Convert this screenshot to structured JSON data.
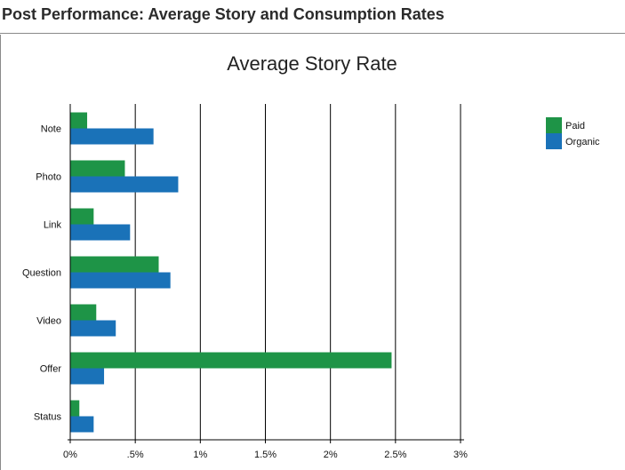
{
  "page": {
    "title": "Post Performance: Average Story and Consumption Rates"
  },
  "colors": {
    "paid": "#1e9447",
    "organic": "#1a72b8",
    "grid": "#000000"
  },
  "chart_data": {
    "type": "bar",
    "orientation": "horizontal",
    "title": "Average Story Rate",
    "xlabel": "",
    "ylabel": "",
    "categories": [
      "Note",
      "Photo",
      "Link",
      "Question",
      "Video",
      "Offer",
      "Status"
    ],
    "series": [
      {
        "name": "Paid",
        "values": [
          0.13,
          0.42,
          0.18,
          0.68,
          0.2,
          2.47,
          0.07
        ]
      },
      {
        "name": "Organic",
        "values": [
          0.64,
          0.83,
          0.46,
          0.77,
          0.35,
          0.26,
          0.18
        ]
      }
    ],
    "xlim": [
      0,
      3
    ],
    "xticks": [
      0,
      0.5,
      1,
      1.5,
      2,
      2.5,
      3
    ],
    "xtick_labels": [
      "0%",
      ".5%",
      "1%",
      "1.5%",
      "2%",
      "2.5%",
      "3%"
    ],
    "grid": true,
    "legend_position": "top-right"
  }
}
